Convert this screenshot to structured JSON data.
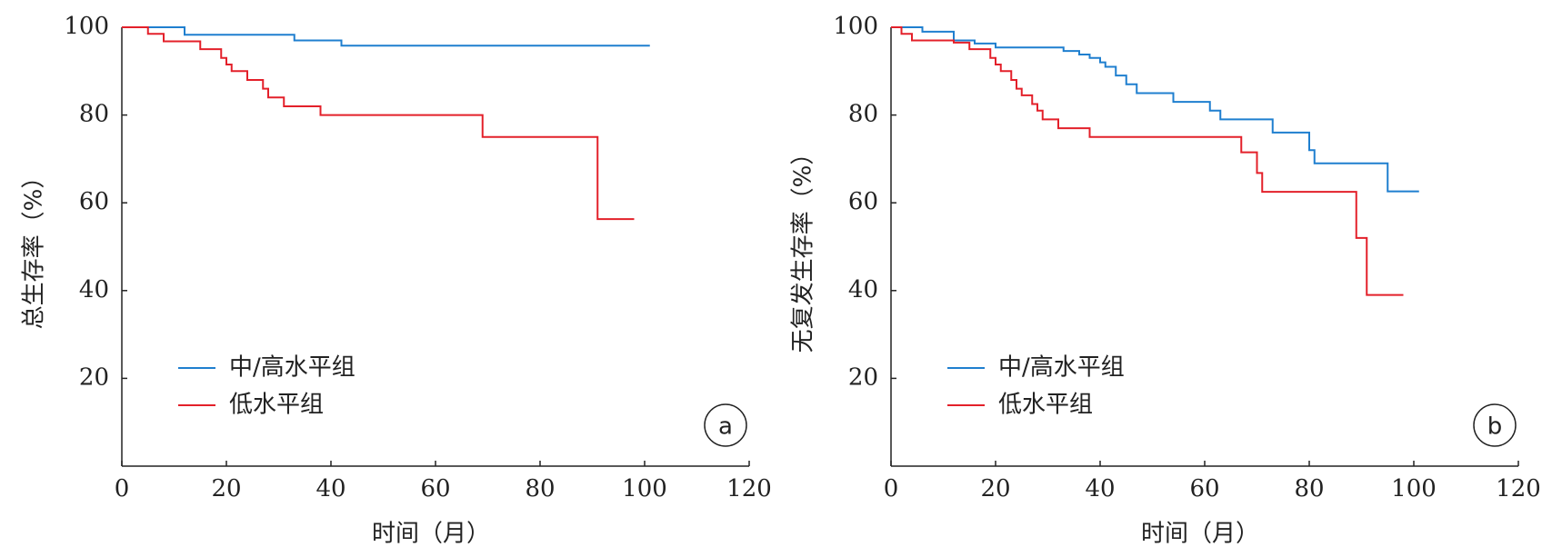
{
  "chart_data": [
    {
      "type": "line",
      "step": true,
      "panel_label": "a",
      "x_label": "时间（月）",
      "y_label": "总生存率（%）",
      "xlim": [
        0,
        120
      ],
      "ylim": [
        0,
        100
      ],
      "xticks": [
        0,
        20,
        40,
        60,
        80,
        100,
        120
      ],
      "yticks": [
        20,
        40,
        60,
        80,
        100
      ],
      "series": [
        {
          "name": "中/高水平组",
          "color": "#1f7fcf",
          "x": [
            0,
            12,
            33,
            42,
            101
          ],
          "values": [
            100,
            98.3,
            97,
            95.8,
            95.8
          ]
        },
        {
          "name": "低水平组",
          "color": "#e3202a",
          "x": [
            0,
            5,
            8,
            15,
            19,
            20,
            21,
            24,
            27,
            28,
            31,
            38,
            69,
            91,
            98
          ],
          "values": [
            100,
            98.5,
            96.8,
            95,
            93,
            91.5,
            90,
            88,
            86,
            84,
            82,
            80,
            75,
            56.3,
            56.3
          ]
        }
      ]
    },
    {
      "type": "line",
      "step": true,
      "panel_label": "b",
      "x_label": "时间（月）",
      "y_label": "无复发生存率（%）",
      "xlim": [
        0,
        120
      ],
      "ylim": [
        0,
        100
      ],
      "xticks": [
        0,
        20,
        40,
        60,
        80,
        100,
        120
      ],
      "yticks": [
        20,
        40,
        60,
        80,
        100
      ],
      "series": [
        {
          "name": "中/高水平组",
          "color": "#1f7fcf",
          "x": [
            0,
            6,
            12,
            16,
            20,
            33,
            36,
            38,
            40,
            41,
            43,
            45,
            47,
            54,
            61,
            63,
            73,
            80,
            81,
            95,
            101
          ],
          "values": [
            100,
            99,
            97,
            96.3,
            95.4,
            94.6,
            93.8,
            93,
            92,
            91,
            89,
            87,
            85,
            83,
            81,
            79,
            76,
            72,
            69,
            62.6,
            62.6
          ]
        },
        {
          "name": "低水平组",
          "color": "#e3202a",
          "x": [
            0,
            2,
            4,
            12,
            15,
            19,
            20,
            21,
            23,
            24,
            25,
            27,
            28,
            29,
            32,
            38,
            66,
            67,
            70,
            71,
            88,
            89,
            91,
            98
          ],
          "values": [
            100,
            98.5,
            97,
            96.5,
            95,
            93,
            91.5,
            90,
            88,
            86,
            84.5,
            82.5,
            81,
            79,
            77,
            75,
            75,
            71.5,
            66.8,
            62.5,
            62.5,
            52,
            39,
            39
          ]
        }
      ]
    }
  ]
}
